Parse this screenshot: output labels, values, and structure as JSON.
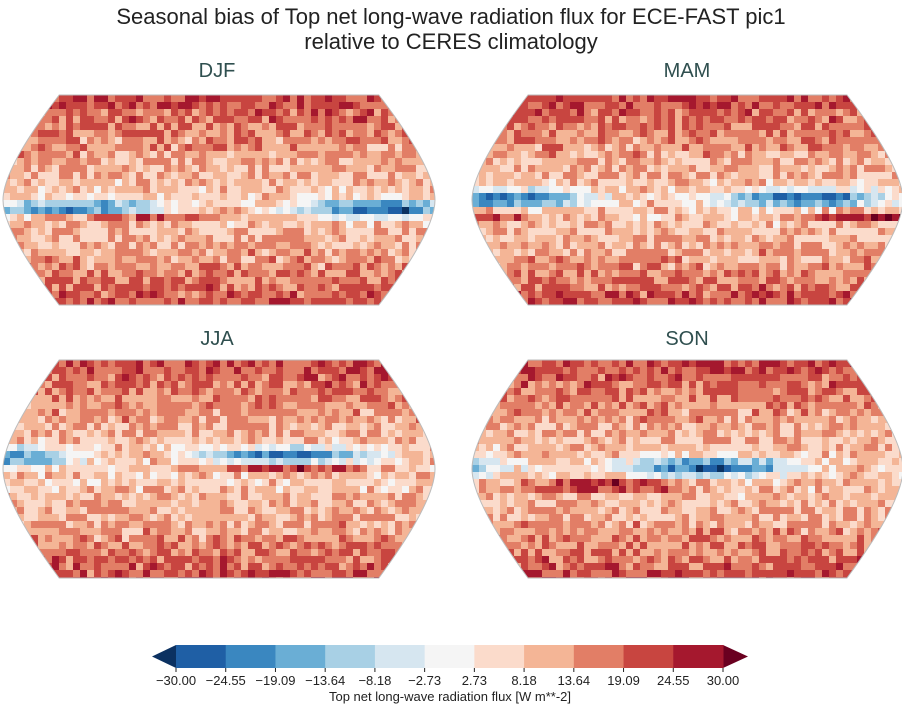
{
  "title_line1": "Seasonal bias of Top net long-wave radiation flux for ECE-FAST pic1",
  "title_line2": "relative to CERES climatology",
  "chart_data": {
    "type": "heatmap",
    "subtype": "map (Robinson projection)",
    "title": "Seasonal bias of Top net long-wave radiation flux for ECE-FAST pic1 relative to CERES climatology",
    "panels": [
      "DJF",
      "MAM",
      "JJA",
      "SON"
    ],
    "colorbar": {
      "label": "Top net long-wave radiation flux [W m**-2]",
      "levels": [
        -30.0,
        -24.55,
        -19.09,
        -13.64,
        -8.18,
        -2.73,
        2.73,
        8.18,
        13.64,
        19.09,
        24.55,
        30.0
      ],
      "tick_labels": [
        "−30.00",
        "−24.55",
        "−19.09",
        "−13.64",
        "−8.18",
        "−2.73",
        "2.73",
        "8.18",
        "13.64",
        "19.09",
        "24.55",
        "30.00"
      ],
      "colors": [
        "#1f5fa5",
        "#3a87c0",
        "#6aaed5",
        "#a8d0e5",
        "#d6e6f0",
        "#f5f5f5",
        "#fbdbcb",
        "#f4b596",
        "#e27e66",
        "#c84540",
        "#a5182e"
      ],
      "under_color": "#0b3161",
      "over_color": "#6a0020",
      "extend": "both",
      "orientation": "horizontal"
    }
  }
}
